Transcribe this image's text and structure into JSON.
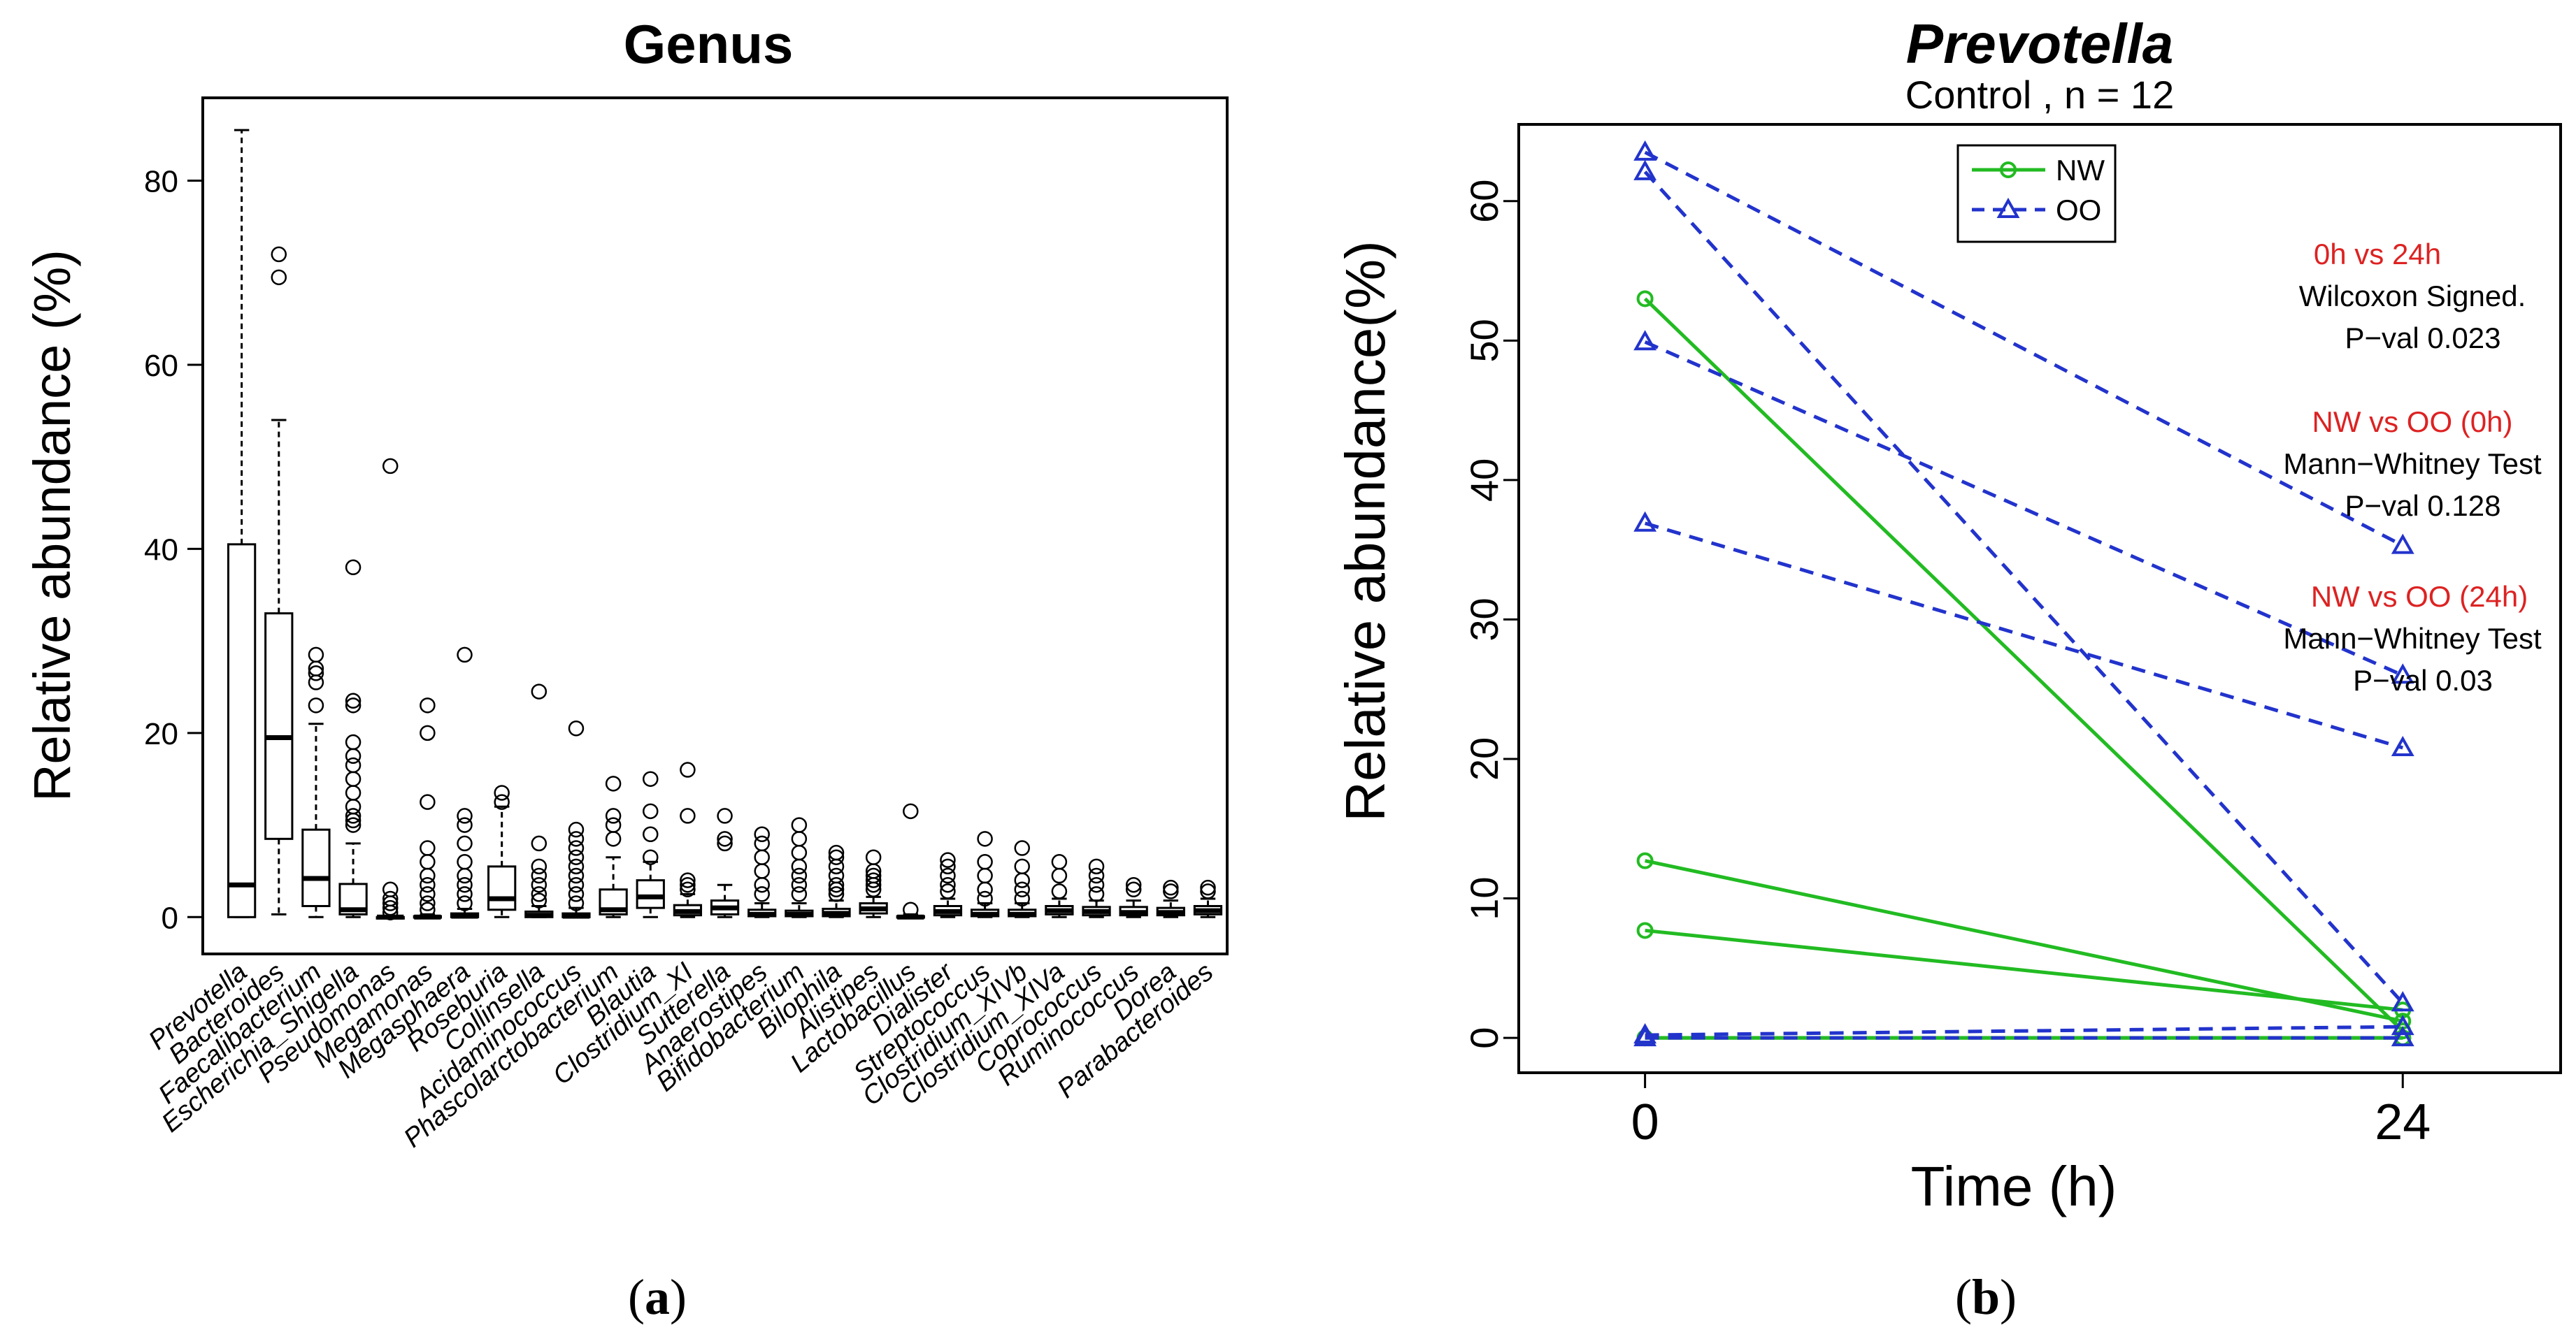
{
  "colors": {
    "nw": "#22bb22",
    "oo": "#2233cc",
    "annotation_red": "#dd2222",
    "axis": "#000000"
  },
  "chart_data": [
    {
      "panel_label": "a",
      "type": "box",
      "title": "Genus",
      "xlabel": "",
      "ylabel": "Relative abundance (%)",
      "ylim": [
        -4,
        89
      ],
      "yticks": [
        0,
        20,
        40,
        60,
        80
      ],
      "categories": [
        "Prevotella",
        "Bacteroides",
        "Faecalibacterium",
        "Escherichia_Shigella",
        "Pseudomonas",
        "Megamonas",
        "Megasphaera",
        "Roseburia",
        "Collinsella",
        "Acidaminococcus",
        "Phascolarctobacterium",
        "Blautia",
        "Clostridium_XI",
        "Sutterella",
        "Anaerostipes",
        "Bifidobacterium",
        "Bilophila",
        "Alistipes",
        "Lactobacillus",
        "Dialister",
        "Streptococcus",
        "Clostridium_XIVb",
        "Clostridium_XIVa",
        "Coprococcus",
        "Ruminococcus",
        "Dorea",
        "Parabacteroides"
      ],
      "boxes": [
        {
          "min": 0,
          "q1": 0,
          "median": 3.5,
          "q3": 40.5,
          "max": 85.5,
          "outliers": []
        },
        {
          "min": 0.3,
          "q1": 8.5,
          "median": 19.5,
          "q3": 33,
          "max": 54,
          "outliers": [
            69.5,
            72
          ]
        },
        {
          "min": 0,
          "q1": 1.2,
          "median": 4.2,
          "q3": 9.5,
          "max": 21,
          "outliers": [
            23,
            25.5,
            26.5,
            27,
            28.5
          ]
        },
        {
          "min": 0,
          "q1": 0.3,
          "median": 0.8,
          "q3": 3.6,
          "max": 8,
          "outliers": [
            10,
            10.5,
            11,
            12,
            13.5,
            15,
            16.5,
            17.5,
            19,
            23,
            23.5,
            38
          ]
        },
        {
          "min": 0,
          "q1": 0,
          "median": 0,
          "q3": 0,
          "max": 0,
          "outliers": [
            0.5,
            1,
            1.5,
            2,
            3,
            49
          ]
        },
        {
          "min": 0,
          "q1": 0,
          "median": 0,
          "q3": 0.1,
          "max": 0.3,
          "outliers": [
            0.8,
            1.5,
            2.5,
            3.5,
            4.5,
            6,
            7.5,
            12.5,
            20,
            23
          ]
        },
        {
          "min": 0,
          "q1": 0,
          "median": 0.1,
          "q3": 0.4,
          "max": 0.9,
          "outliers": [
            1.5,
            2.5,
            3.5,
            4.5,
            6,
            8,
            10,
            11,
            28.5
          ]
        },
        {
          "min": 0,
          "q1": 0.8,
          "median": 2,
          "q3": 5.5,
          "max": 12,
          "outliers": [
            12.5,
            13.5
          ]
        },
        {
          "min": 0,
          "q1": 0,
          "median": 0.2,
          "q3": 0.6,
          "max": 1.2,
          "outliers": [
            1.8,
            2.5,
            3.5,
            4.5,
            5.5,
            8,
            24.5
          ]
        },
        {
          "min": 0,
          "q1": 0,
          "median": 0.1,
          "q3": 0.4,
          "max": 1,
          "outliers": [
            1.5,
            2.5,
            3.5,
            4.5,
            5.5,
            6.5,
            7.5,
            8.5,
            9.5,
            20.5
          ]
        },
        {
          "min": 0,
          "q1": 0.3,
          "median": 0.8,
          "q3": 3,
          "max": 6.5,
          "outliers": [
            8.5,
            10,
            11,
            14.5
          ]
        },
        {
          "min": 0,
          "q1": 1,
          "median": 2.2,
          "q3": 4,
          "max": 6,
          "outliers": [
            6.5,
            9,
            11.5,
            15
          ]
        },
        {
          "min": 0,
          "q1": 0.2,
          "median": 0.6,
          "q3": 1.3,
          "max": 2.5,
          "outliers": [
            3,
            3.5,
            4,
            11,
            16
          ]
        },
        {
          "min": 0,
          "q1": 0.3,
          "median": 1,
          "q3": 1.8,
          "max": 3.5,
          "outliers": [
            8,
            8.5,
            11
          ]
        },
        {
          "min": 0,
          "q1": 0.1,
          "median": 0.3,
          "q3": 0.8,
          "max": 1.5,
          "outliers": [
            2.5,
            3.5,
            5,
            6.5,
            8,
            9
          ]
        },
        {
          "min": 0,
          "q1": 0.1,
          "median": 0.3,
          "q3": 0.7,
          "max": 1.5,
          "outliers": [
            2.5,
            3.5,
            4.5,
            5.5,
            7,
            8.5,
            10
          ]
        },
        {
          "min": 0,
          "q1": 0.1,
          "median": 0.4,
          "q3": 0.9,
          "max": 1.8,
          "outliers": [
            2.5,
            3,
            3.5,
            4.5,
            5.5,
            6.5,
            7
          ]
        },
        {
          "min": 0,
          "q1": 0.4,
          "median": 0.9,
          "q3": 1.5,
          "max": 2.2,
          "outliers": [
            3,
            3.5,
            4,
            4.5,
            5,
            6.5
          ]
        },
        {
          "min": 0,
          "q1": 0,
          "median": 0,
          "q3": 0.1,
          "max": 0.3,
          "outliers": [
            0.8,
            11.5
          ]
        },
        {
          "min": 0,
          "q1": 0.2,
          "median": 0.6,
          "q3": 1.2,
          "max": 2,
          "outliers": [
            2.8,
            3.5,
            4.5,
            5.5,
            6.2
          ]
        },
        {
          "min": 0,
          "q1": 0.1,
          "median": 0.3,
          "q3": 0.8,
          "max": 1.5,
          "outliers": [
            2,
            3,
            4.5,
            6,
            8.5
          ]
        },
        {
          "min": 0,
          "q1": 0.1,
          "median": 0.3,
          "q3": 0.8,
          "max": 1.5,
          "outliers": [
            2,
            3,
            4,
            5.5,
            7.5
          ]
        },
        {
          "min": 0,
          "q1": 0.3,
          "median": 0.7,
          "q3": 1.2,
          "max": 2,
          "outliers": [
            2.8,
            4.5,
            6
          ]
        },
        {
          "min": 0,
          "q1": 0.2,
          "median": 0.6,
          "q3": 1.1,
          "max": 1.8,
          "outliers": [
            2.5,
            3.5,
            4.5,
            5.5
          ]
        },
        {
          "min": 0,
          "q1": 0.2,
          "median": 0.5,
          "q3": 1.1,
          "max": 1.8,
          "outliers": [
            3,
            3.5
          ]
        },
        {
          "min": 0,
          "q1": 0.2,
          "median": 0.5,
          "q3": 1,
          "max": 1.8,
          "outliers": [
            2.8,
            3.2
          ]
        },
        {
          "min": 0,
          "q1": 0.3,
          "median": 0.7,
          "q3": 1.2,
          "max": 2,
          "outliers": [
            2.8,
            3.2
          ]
        }
      ]
    },
    {
      "panel_label": "b",
      "type": "line",
      "title": "Prevotella",
      "subtitle": "Control , n = 12",
      "xlabel": "Time (h)",
      "ylabel": "Relative abundance(%)",
      "x": [
        0,
        24
      ],
      "xlim": [
        -4,
        29
      ],
      "ylim": [
        -2.5,
        65.5
      ],
      "yticks": [
        0,
        10,
        20,
        30,
        40,
        50,
        60
      ],
      "xticks": [
        0,
        24
      ],
      "legend": {
        "position": "top-center",
        "entries": [
          {
            "name": "NW",
            "marker": "circle",
            "style": "solid"
          },
          {
            "name": "OO",
            "marker": "triangle",
            "style": "dashed"
          }
        ]
      },
      "series": [
        {
          "group": "NW",
          "values": [
            53,
            0.5
          ]
        },
        {
          "group": "NW",
          "values": [
            12.7,
            1.2
          ]
        },
        {
          "group": "NW",
          "values": [
            7.7,
            2
          ]
        },
        {
          "group": "NW",
          "values": [
            0,
            0
          ]
        },
        {
          "group": "NW",
          "values": [
            0,
            0
          ]
        },
        {
          "group": "NW",
          "values": [
            0,
            0
          ]
        },
        {
          "group": "OO",
          "values": [
            63.5,
            35.3
          ]
        },
        {
          "group": "OO",
          "values": [
            62.1,
            2.5
          ]
        },
        {
          "group": "OO",
          "values": [
            49.9,
            26
          ]
        },
        {
          "group": "OO",
          "values": [
            36.9,
            20.8
          ]
        },
        {
          "group": "OO",
          "values": [
            0.2,
            0.8
          ]
        },
        {
          "group": "OO",
          "values": [
            0,
            0
          ]
        }
      ],
      "annotations": [
        {
          "heading": "0h vs 24h",
          "test": "Wilcoxon Signed.",
          "pval": "P−val 0.023"
        },
        {
          "heading": "NW vs OO (0h)",
          "test": "Mann−Whitney Test",
          "pval": "P−val 0.128"
        },
        {
          "heading": "NW vs OO (24h)",
          "test": "Mann−Whitney Test",
          "pval": "P−val 0.03"
        }
      ]
    }
  ]
}
